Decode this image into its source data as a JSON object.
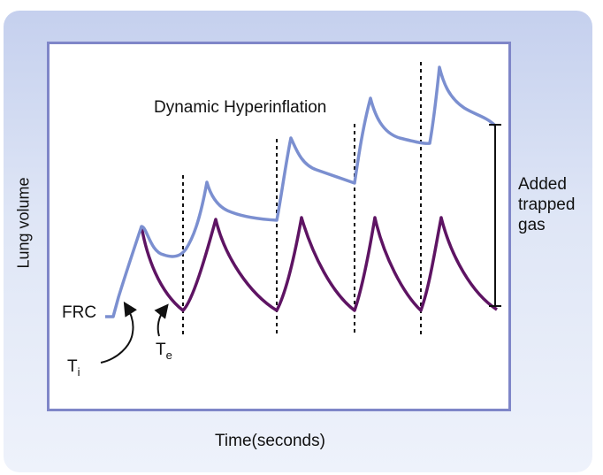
{
  "diagram": {
    "title": "Dynamic Hyperinflation",
    "xlabel": "Time(seconds)",
    "ylabel": "Lung volume",
    "frc_label": "FRC",
    "ti_label": {
      "main": "T",
      "sub": "i"
    },
    "te_label": {
      "main": "T",
      "sub": "e"
    },
    "trapped_label": [
      "Added",
      "trapped",
      "gas"
    ],
    "colors": {
      "hyperinflation_curve": "#7b8fd0",
      "normal_breath_curve": "#5e1463",
      "frame": "#7f86c8",
      "panel": "#c5d0ee"
    }
  }
}
